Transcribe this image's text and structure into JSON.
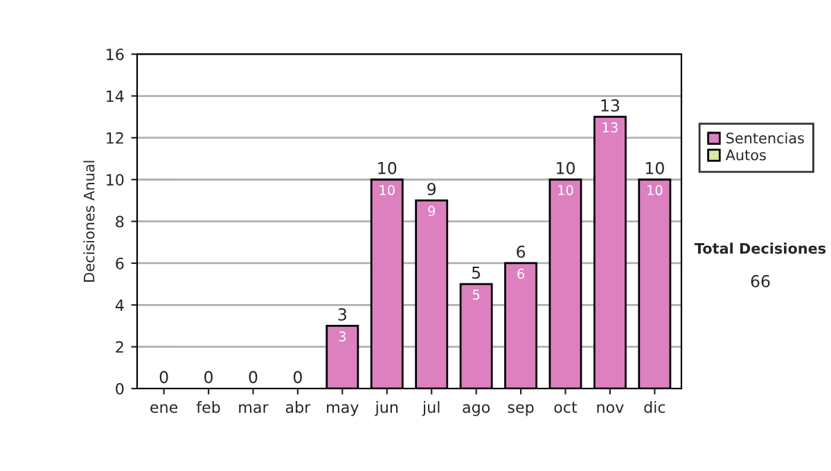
{
  "chart_data": {
    "type": "bar",
    "stacked": true,
    "ylabel": "Decisiones Anual",
    "categories": [
      "ene",
      "feb",
      "mar",
      "abr",
      "may",
      "jun",
      "jul",
      "ago",
      "sep",
      "oct",
      "nov",
      "dic"
    ],
    "series": [
      {
        "name": "Sentencias",
        "color": "#dd80c0",
        "values": [
          0,
          0,
          0,
          0,
          3,
          10,
          9,
          5,
          6,
          10,
          13,
          10
        ],
        "value_labels": [
          null,
          null,
          null,
          null,
          "3",
          "10",
          "9",
          "5",
          "6",
          "10",
          "13",
          "10"
        ]
      },
      {
        "name": "Autos",
        "color": "#d8eca0",
        "values": [
          0,
          0,
          0,
          0,
          0,
          0,
          0,
          0,
          0,
          0,
          0,
          0
        ]
      }
    ],
    "totals": [
      "0",
      "0",
      "0",
      "0",
      "3",
      "10",
      "9",
      "5",
      "6",
      "10",
      "13",
      "10"
    ],
    "ylim": [
      0,
      16
    ],
    "yticks": [
      0,
      2,
      4,
      6,
      8,
      10,
      12,
      14,
      16
    ],
    "grid": "y",
    "legend": "right",
    "annotations": [
      "Total Decisiones",
      "66"
    ]
  }
}
